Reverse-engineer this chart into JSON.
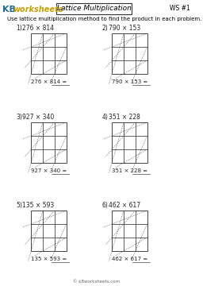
{
  "title": "Lattice Multiplication",
  "ws_label": "WS #1",
  "instruction": "Use lattice multiplication method to find the product in each problem.",
  "problems": [
    {
      "num": "1)",
      "expr": "276 × 814"
    },
    {
      "num": "2)",
      "expr": "790 × 153"
    },
    {
      "num": "3)",
      "expr": "927 × 340"
    },
    {
      "num": "4)",
      "expr": "351 × 228"
    },
    {
      "num": "5)",
      "expr": "135 × 593"
    },
    {
      "num": "6)",
      "expr": "462 × 617"
    }
  ],
  "grid_rows": 3,
  "grid_cols": 3,
  "bg_color": "#ffffff",
  "grid_color": "#444444",
  "diag_color": "#777777",
  "answer_line_color": "#444444",
  "font_size_instruction": 5.0,
  "font_size_problem_num": 5.5,
  "font_size_expr": 5.5,
  "font_size_answer": 5.0,
  "font_size_title": 6.5,
  "font_size_ws": 5.5,
  "font_size_logo_kb": 8,
  "font_size_logo_rest": 7,
  "logo_color_kb": "#1a6a9a",
  "logo_color_rest": "#c8a000"
}
